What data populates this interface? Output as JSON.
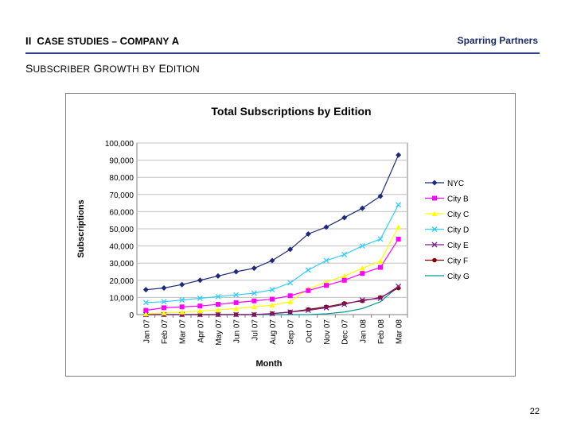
{
  "header": {
    "numeral": "II",
    "case_studies_initial": "C",
    "case_studies_rest": "ASE STUDIES",
    "dash": "–",
    "company_initial": "C",
    "company_rest": "OMPANY",
    "company_letter": "A",
    "brand": "Sparring Partners"
  },
  "section": {
    "w1_initial": "S",
    "w1_rest": "UBSCRIBER",
    "w2_initial": "G",
    "w2_rest": "ROWTH",
    "w3": "BY",
    "w4_initial": "E",
    "w4_rest": "DITION"
  },
  "slide_number": "22",
  "chart_data": {
    "type": "line",
    "title": "Total Subscriptions by Edition",
    "xlabel": "Month",
    "ylabel": "Subscriptions",
    "ylim": [
      0,
      100000
    ],
    "yticks": [
      0,
      10000,
      20000,
      30000,
      40000,
      50000,
      60000,
      70000,
      80000,
      90000,
      100000
    ],
    "ytick_labels": [
      "0",
      "10,000",
      "20,000",
      "30,000",
      "40,000",
      "50,000",
      "60,000",
      "70,000",
      "80,000",
      "90,000",
      "100,000"
    ],
    "grid": true,
    "legend_position": "right",
    "categories": [
      "Jan 07",
      "Feb 07",
      "Mar 07",
      "Apr 07",
      "May 07",
      "Jun 07",
      "Jul 07",
      "Aug 07",
      "Sep 07",
      "Oct 07",
      "Nov 07",
      "Dec 07",
      "Jan 08",
      "Feb 08",
      "Mar 08"
    ],
    "series": [
      {
        "name": "NYC",
        "color": "#1f2a7a",
        "marker": "diamond",
        "values": [
          14500,
          15500,
          17500,
          20000,
          22500,
          25000,
          27000,
          31500,
          38000,
          47000,
          51000,
          56500,
          62000,
          69000,
          93000
        ]
      },
      {
        "name": "City B",
        "color": "#ff00ff",
        "marker": "square",
        "values": [
          2500,
          4000,
          4500,
          5000,
          6000,
          7000,
          8000,
          9000,
          11000,
          14000,
          17000,
          20000,
          24000,
          27500,
          44000
        ]
      },
      {
        "name": "City C",
        "color": "#ffff00",
        "marker": "triangle",
        "values": [
          500,
          1000,
          1500,
          2000,
          2800,
          3500,
          4500,
          5500,
          7500,
          15000,
          19000,
          22500,
          27000,
          31000,
          51000
        ]
      },
      {
        "name": "City D",
        "color": "#33ccff",
        "marker": "x",
        "values": [
          7000,
          7500,
          8500,
          9500,
          10500,
          11500,
          12500,
          14500,
          18500,
          26000,
          31500,
          35000,
          40000,
          44000,
          64000
        ]
      },
      {
        "name": "City E",
        "color": "#7a1f8a",
        "marker": "x",
        "values": [
          0,
          0,
          0,
          0,
          0,
          0,
          0,
          500,
          1500,
          2500,
          4000,
          6000,
          8500,
          9500,
          16500
        ]
      },
      {
        "name": "City F",
        "color": "#800000",
        "marker": "circle",
        "values": [
          0,
          0,
          0,
          0,
          0,
          0,
          0,
          600,
          1500,
          3000,
          4500,
          6500,
          8000,
          10000,
          15500
        ]
      },
      {
        "name": "City G",
        "color": "#009999",
        "marker": "none",
        "values": [
          0,
          0,
          0,
          0,
          0,
          0,
          0,
          0,
          0,
          0,
          500,
          1500,
          3500,
          7500,
          16500
        ]
      }
    ]
  }
}
